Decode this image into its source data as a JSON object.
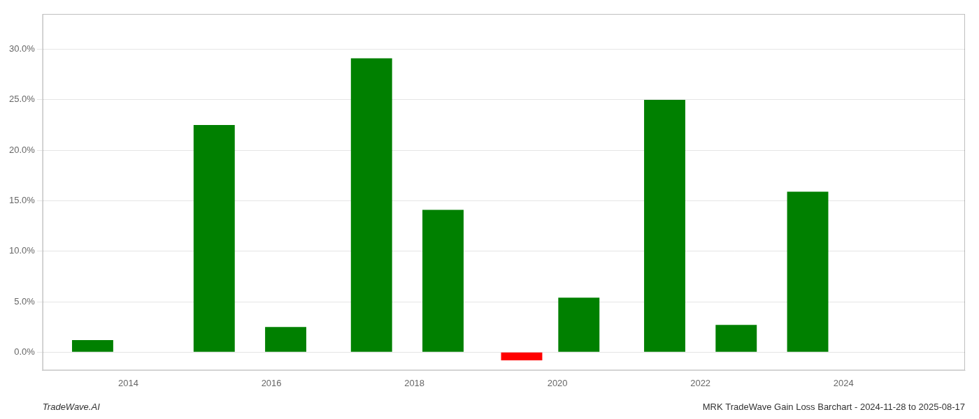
{
  "chart_data": {
    "type": "bar",
    "x": [
      2013.0,
      2014.7,
      2015.7,
      2016.9,
      2017.9,
      2019.0,
      2019.8,
      2021.0,
      2022.0,
      2023.0
    ],
    "values": [
      0.012,
      0.225,
      0.025,
      0.291,
      0.141,
      -0.008,
      0.054,
      0.25,
      0.027,
      0.159
    ],
    "colors": [
      "#008000",
      "#008000",
      "#008000",
      "#008000",
      "#008000",
      "#ff0000",
      "#008000",
      "#008000",
      "#008000",
      "#008000"
    ],
    "xlim": [
      2012.3,
      2025.2
    ],
    "xticks": [
      {
        "value": 2013.5,
        "label": "2014"
      },
      {
        "value": 2015.5,
        "label": "2016"
      },
      {
        "value": 2017.5,
        "label": "2018"
      },
      {
        "value": 2019.5,
        "label": "2020"
      },
      {
        "value": 2021.5,
        "label": "2022"
      },
      {
        "value": 2023.5,
        "label": "2024"
      }
    ],
    "ylim": [
      -0.018,
      0.335
    ],
    "yticks": [
      {
        "value": 0.0,
        "label": "0.0%"
      },
      {
        "value": 0.05,
        "label": "5.0%"
      },
      {
        "value": 0.1,
        "label": "10.0%"
      },
      {
        "value": 0.15,
        "label": "15.0%"
      },
      {
        "value": 0.2,
        "label": "20.0%"
      },
      {
        "value": 0.25,
        "label": "25.0%"
      },
      {
        "value": 0.3,
        "label": "30.0%"
      }
    ],
    "grid": "y",
    "annotations": [
      "TradeWave.AI",
      "MRK TradeWave Gain Loss Barchart - 2024-11-28 to 2025-08-17"
    ]
  }
}
